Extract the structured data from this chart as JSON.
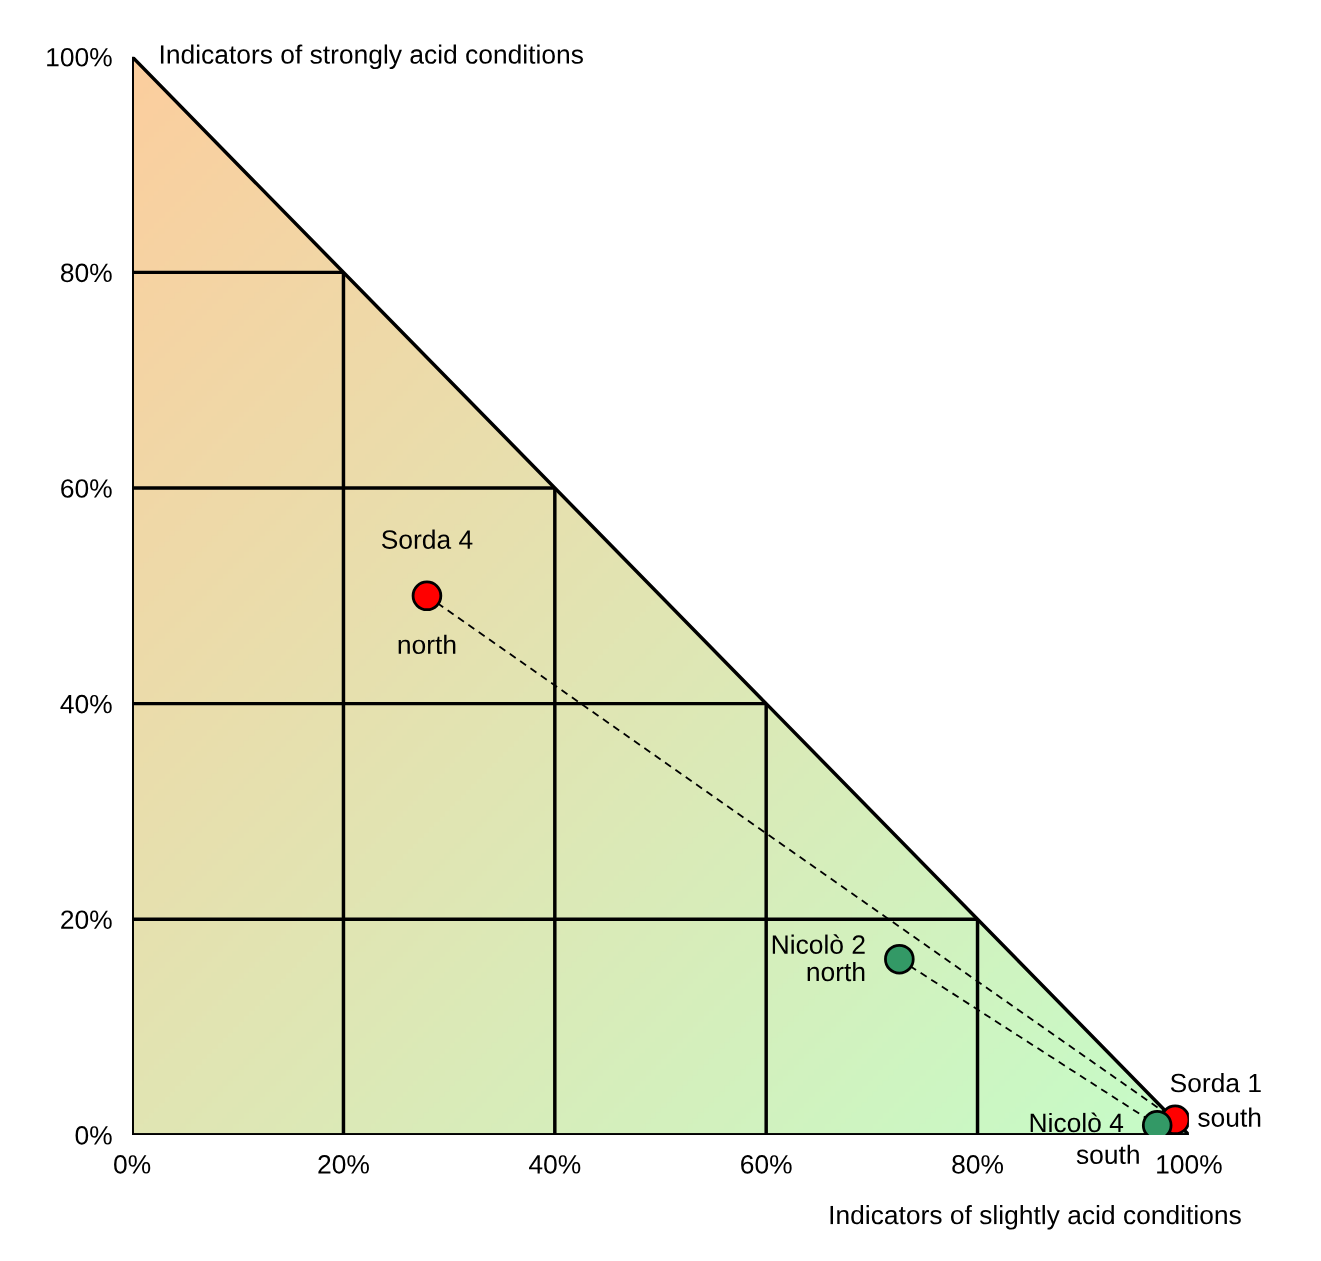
{
  "chart_data": {
    "type": "line",
    "xlabel": "Indicators of slightly acid conditions",
    "ylabel": "Indicators of strongly acid conditions",
    "xlim": [
      0,
      100
    ],
    "ylim": [
      0,
      100
    ],
    "xticks": [
      {
        "value": 0,
        "label": "0%"
      },
      {
        "value": 20,
        "label": "20%"
      },
      {
        "value": 40,
        "label": "40%"
      },
      {
        "value": 60,
        "label": "60%"
      },
      {
        "value": 80,
        "label": "80%"
      },
      {
        "value": 100,
        "label": "100%"
      }
    ],
    "yticks": [
      {
        "value": 0,
        "label": "0%"
      },
      {
        "value": 20,
        "label": "20%"
      },
      {
        "value": 40,
        "label": "40%"
      },
      {
        "value": 60,
        "label": "60%"
      },
      {
        "value": 80,
        "label": "80%"
      },
      {
        "value": 100,
        "label": "100%"
      }
    ],
    "grid": true,
    "marker": "circle",
    "line_style": "dashed",
    "series": [
      {
        "color": "#ff0000",
        "x": [
          27.9,
          98.7
        ],
        "values": [
          50.0,
          1.4
        ]
      },
      {
        "color": "#339966",
        "x": [
          72.6,
          97.0
        ],
        "values": [
          16.3,
          0.9
        ]
      }
    ],
    "annotations": [
      {
        "text": "Sorda 4",
        "x": 27.9,
        "y": 50.0
      },
      {
        "text": "north",
        "x": 27.9,
        "y": 50.0
      },
      {
        "text": "Nicolò 2",
        "x": 72.6,
        "y": 16.3
      },
      {
        "text": "north",
        "x": 72.6,
        "y": 16.3
      },
      {
        "text": "Sorda 1",
        "x": 98.7,
        "y": 1.4
      },
      {
        "text": "south",
        "x": 98.7,
        "y": 1.4
      },
      {
        "text": "Nicolò 4",
        "x": 97.0,
        "y": 0.9
      },
      {
        "text": "south",
        "x": 97.0,
        "y": 0.9
      }
    ]
  }
}
